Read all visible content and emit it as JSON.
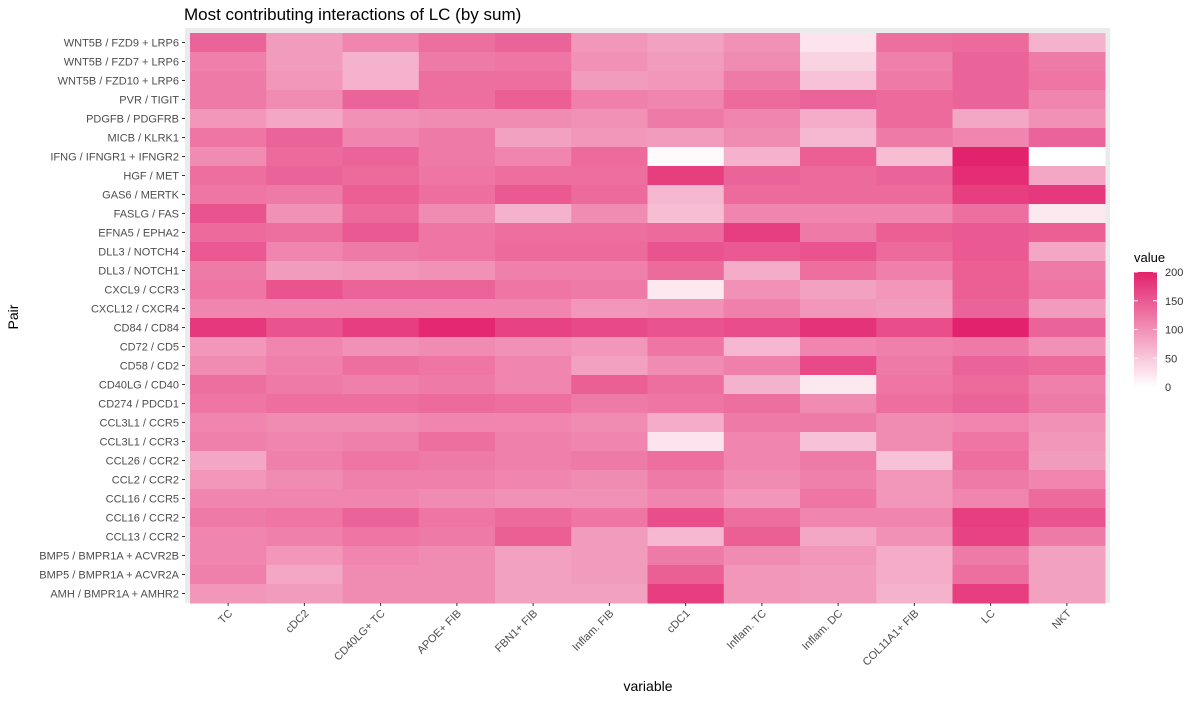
{
  "chart_data": {
    "type": "heatmap",
    "title": "Most contributing interactions of LC (by sum)",
    "xlabel": "variable",
    "ylabel": "Pair",
    "x_categories": [
      "TC",
      "cDC2",
      "CD40LG+ TC",
      "APOE+ FIB",
      "FBN1+ FIB",
      "Inflam. FIB",
      "cDC1",
      "Inflam. TC",
      "Inflam. DC",
      "COL11A1+ FIB",
      "LC",
      "NKT"
    ],
    "y_categories": [
      "WNT5B / FZD9 + LRP6",
      "WNT5B / FZD7 + LRP6",
      "WNT5B / FZD10 + LRP6",
      "PVR / TIGIT",
      "PDGFB / PDGFRB",
      "MICB / KLRK1",
      "IFNG / IFNGR1 + IFNGR2",
      "HGF / MET",
      "GAS6 / MERTK",
      "FASLG / FAS",
      "EFNA5 / EPHA2",
      "DLL3 / NOTCH4",
      "DLL3 / NOTCH1",
      "CXCL9 / CCR3",
      "CXCL12 / CXCR4",
      "CD84 / CD84",
      "CD72 / CD5",
      "CD58 / CD2",
      "CD40LG / CD40",
      "CD274 / PDCD1",
      "CCL3L1 / CCR5",
      "CCL3L1 / CCR3",
      "CCL26 / CCR2",
      "CCL2 / CCR2",
      "CCL16 / CCR5",
      "CCL16 / CCR2",
      "CCL13 / CCR2",
      "BMP5 / BMPR1A + ACVR2B",
      "BMP5 / BMPR1A + ACVR2A",
      "AMH / BMPR1A + AMHR2"
    ],
    "values": [
      [
        140,
        90,
        110,
        130,
        140,
        95,
        85,
        100,
        25,
        130,
        135,
        70
      ],
      [
        115,
        90,
        70,
        120,
        125,
        100,
        90,
        105,
        40,
        115,
        140,
        120
      ],
      [
        120,
        95,
        70,
        130,
        130,
        90,
        95,
        120,
        55,
        120,
        140,
        125
      ],
      [
        120,
        105,
        140,
        130,
        145,
        115,
        110,
        135,
        140,
        135,
        140,
        110
      ],
      [
        95,
        80,
        100,
        105,
        105,
        100,
        120,
        110,
        75,
        135,
        80,
        100
      ],
      [
        125,
        140,
        110,
        120,
        85,
        95,
        90,
        105,
        65,
        120,
        110,
        140
      ],
      [
        105,
        135,
        140,
        120,
        110,
        135,
        5,
        70,
        145,
        60,
        200,
        0
      ],
      [
        130,
        140,
        135,
        125,
        130,
        130,
        175,
        140,
        135,
        140,
        190,
        80
      ],
      [
        125,
        120,
        145,
        130,
        150,
        135,
        65,
        135,
        135,
        135,
        175,
        180
      ],
      [
        155,
        100,
        135,
        105,
        70,
        105,
        60,
        110,
        110,
        110,
        130,
        20
      ],
      [
        135,
        130,
        150,
        125,
        130,
        130,
        135,
        175,
        120,
        145,
        150,
        145
      ],
      [
        150,
        110,
        120,
        125,
        135,
        135,
        155,
        150,
        155,
        135,
        150,
        80
      ],
      [
        120,
        90,
        95,
        100,
        115,
        115,
        135,
        75,
        130,
        115,
        145,
        120
      ],
      [
        125,
        155,
        140,
        140,
        125,
        120,
        20,
        100,
        85,
        95,
        145,
        125
      ],
      [
        110,
        110,
        110,
        110,
        110,
        95,
        100,
        115,
        95,
        90,
        140,
        90
      ],
      [
        180,
        155,
        175,
        195,
        170,
        165,
        155,
        160,
        185,
        160,
        205,
        140
      ],
      [
        95,
        110,
        100,
        105,
        100,
        95,
        125,
        65,
        110,
        115,
        120,
        100
      ],
      [
        105,
        115,
        130,
        125,
        110,
        85,
        105,
        115,
        165,
        120,
        140,
        135
      ],
      [
        130,
        120,
        115,
        120,
        110,
        145,
        130,
        70,
        20,
        125,
        135,
        115
      ],
      [
        125,
        130,
        130,
        135,
        130,
        120,
        125,
        130,
        105,
        130,
        140,
        120
      ],
      [
        110,
        105,
        105,
        110,
        110,
        105,
        75,
        120,
        120,
        105,
        110,
        100
      ],
      [
        115,
        110,
        115,
        130,
        115,
        110,
        25,
        110,
        55,
        105,
        125,
        95
      ],
      [
        80,
        115,
        125,
        120,
        115,
        120,
        130,
        110,
        120,
        55,
        130,
        90
      ],
      [
        95,
        105,
        115,
        115,
        110,
        105,
        120,
        105,
        115,
        95,
        120,
        110
      ],
      [
        110,
        110,
        110,
        105,
        100,
        100,
        110,
        95,
        125,
        95,
        110,
        135
      ],
      [
        120,
        125,
        140,
        125,
        135,
        125,
        160,
        130,
        110,
        110,
        175,
        155
      ],
      [
        110,
        115,
        125,
        120,
        145,
        90,
        65,
        145,
        80,
        100,
        170,
        120
      ],
      [
        110,
        95,
        110,
        105,
        85,
        90,
        120,
        105,
        95,
        75,
        120,
        85
      ],
      [
        115,
        80,
        105,
        105,
        85,
        90,
        145,
        95,
        90,
        75,
        130,
        85
      ],
      [
        95,
        90,
        105,
        105,
        85,
        85,
        175,
        95,
        90,
        70,
        175,
        85
      ]
    ],
    "legend": {
      "title": "value",
      "ticks": [
        0,
        50,
        100,
        150,
        200
      ],
      "range": [
        0,
        200
      ],
      "colors": [
        "#ffffff",
        "#e3226d"
      ],
      "placement": "right"
    },
    "background": "#ebebeb"
  }
}
